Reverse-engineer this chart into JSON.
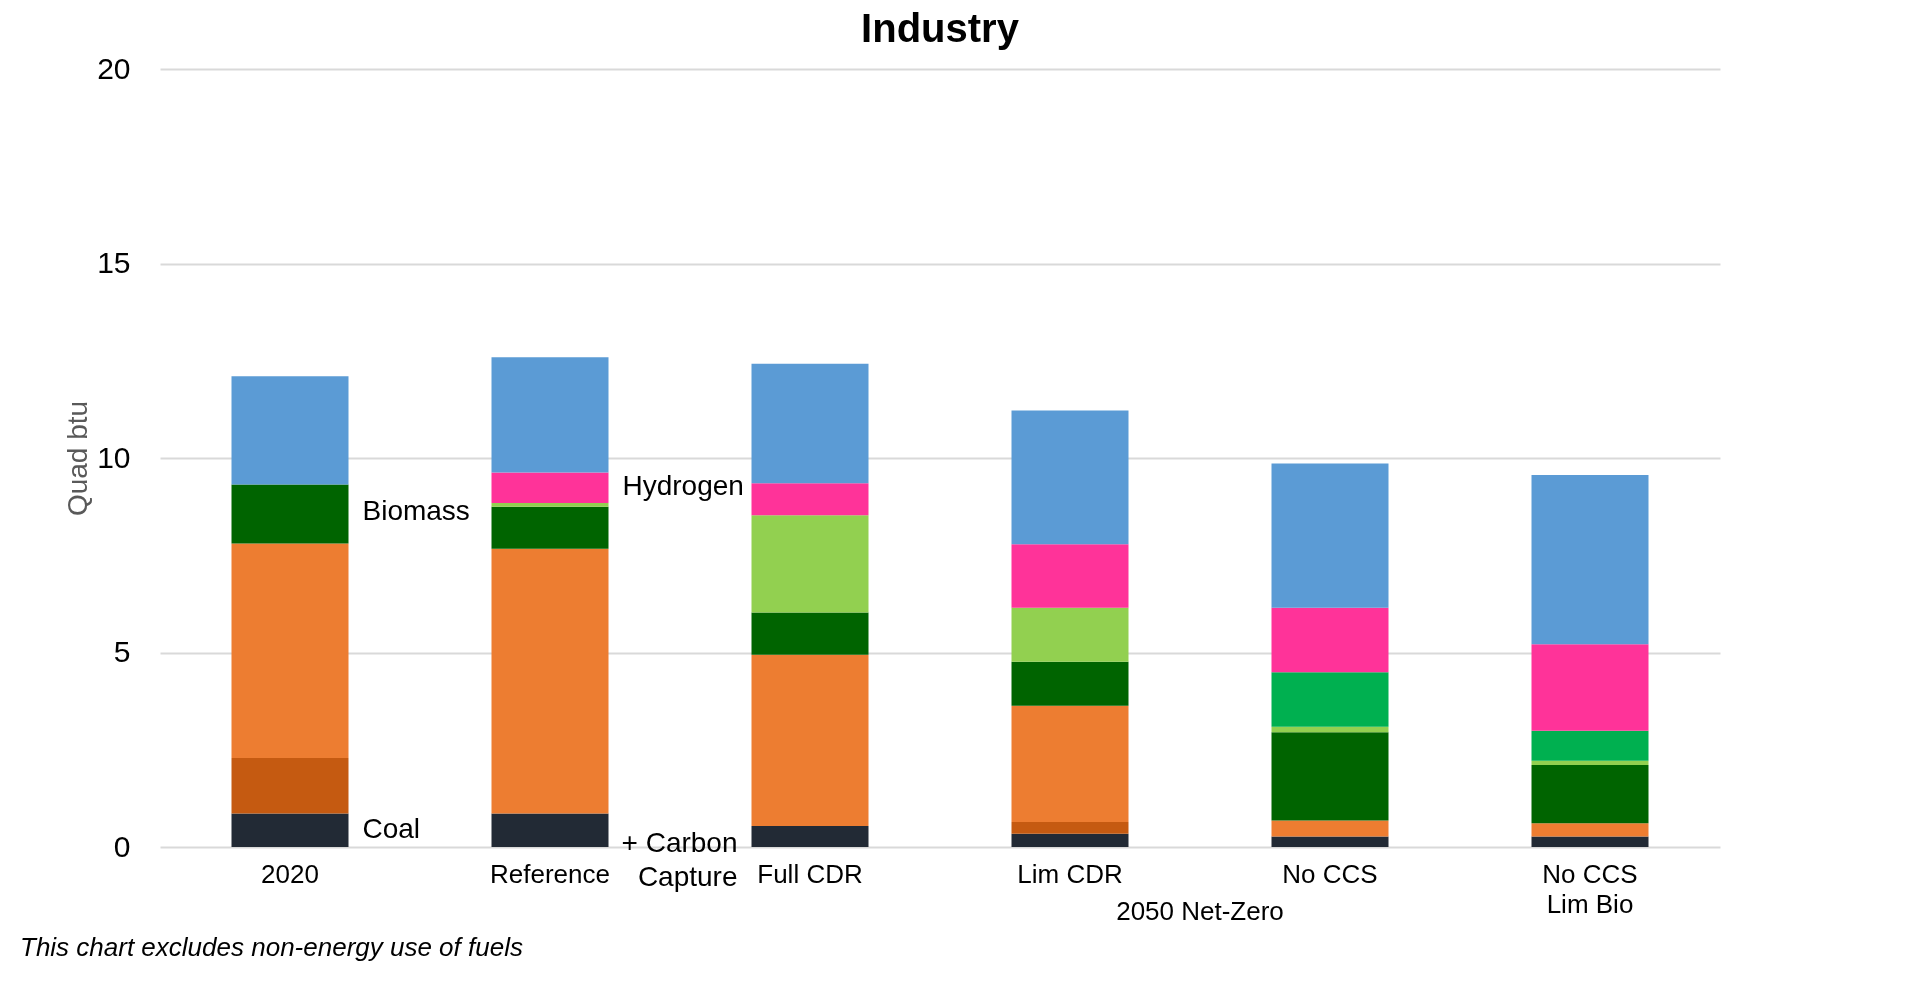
{
  "chart_data": {
    "type": "bar",
    "title": "Industry",
    "ylabel": "Quad btu",
    "stacked": true,
    "categories": [
      "2020",
      "Reference",
      "Full CDR",
      "Lim CDR",
      "No CCS",
      "No CCS\nLim Bio"
    ],
    "series": [
      {
        "color": "#222a35",
        "values": [
          0.86,
          0.86,
          null,
          null,
          0.27,
          0.27
        ]
      },
      {
        "color": "#222a35",
        "values": [
          null,
          null,
          0.54,
          0.34,
          null,
          null
        ]
      },
      {
        "color": "#c55a11",
        "values": [
          1.43,
          null,
          null,
          0.3,
          null,
          null
        ]
      },
      {
        "color": "#ed7d31",
        "values": [
          5.51,
          6.81,
          4.4,
          2.99,
          0.41,
          0.34
        ]
      },
      {
        "color": "#006400",
        "values": [
          1.52,
          1.08,
          1.09,
          1.13,
          2.27,
          1.5
        ]
      },
      {
        "color": "#92d050",
        "values": [
          null,
          0.09,
          2.5,
          1.39,
          0.14,
          0.11
        ]
      },
      {
        "color": "#00b050",
        "values": [
          null,
          null,
          null,
          null,
          1.4,
          null
        ]
      },
      {
        "color": "#00b050",
        "values": [
          null,
          null,
          null,
          null,
          null,
          0.77
        ]
      },
      {
        "color": "#ff3399",
        "values": [
          null,
          0.79,
          0.82,
          1.63,
          1.66,
          2.22
        ]
      },
      {
        "color": "#5b9bd5",
        "values": [
          2.78,
          2.96,
          3.07,
          3.44,
          3.71,
          4.35
        ]
      }
    ],
    "ylim": [
      0,
      20
    ],
    "yticks": [
      0,
      5,
      10,
      15,
      20
    ],
    "grid": "y",
    "legend": false,
    "annotations": [
      "Biomass",
      "Coal",
      "Hydrogen",
      "+ Carbon\nCapture",
      "2050 Net-Zero",
      "This chart excludes non-energy use of fuels"
    ]
  }
}
